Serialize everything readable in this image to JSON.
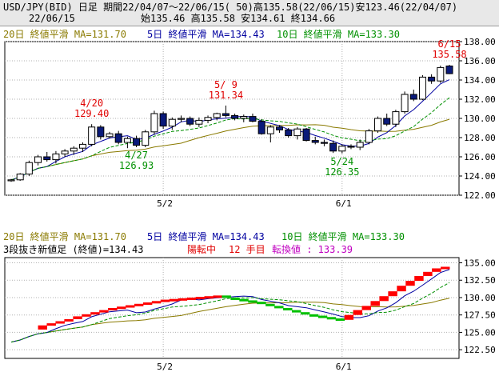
{
  "header": {
    "line1": "USD/JPY(BID) 日足 期間22/04/07～22/06/15( 50)高135.58(22/06/15)安123.46(22/04/07)",
    "line2_date": "22/06/15",
    "line2_ohlc": "始135.46 高135.58 安134.61 終134.66"
  },
  "panel1": {
    "ma_legend": [
      {
        "text": "20日 終値平滑 MA=131.70",
        "color": "#8a7a00"
      },
      {
        "text": "5日 終値平滑 MA=134.43",
        "color": "#0000a0"
      },
      {
        "text": "10日 終値平滑 MA=133.30",
        "color": "#009000"
      }
    ],
    "annotations": [
      {
        "date": "4/20",
        "value": "129.40",
        "color": "#e00000"
      },
      {
        "date": "5/ 9",
        "value": "131.34",
        "color": "#e00000"
      },
      {
        "date": "6/15",
        "value": "135.58",
        "color": "#e00000"
      },
      {
        "date": "4/27",
        "value": "126.93",
        "color": "#009000"
      },
      {
        "date": "5/24",
        "value": "126.35",
        "color": "#009000"
      }
    ]
  },
  "panel2": {
    "ma_legend": [
      {
        "text": "20日 終値平滑 MA=131.70",
        "color": "#8a7a00"
      },
      {
        "text": "5日 終値平滑 MA=134.43",
        "color": "#0000a0"
      },
      {
        "text": "10日 終値平滑 MA=133.30",
        "color": "#009000"
      }
    ],
    "info": [
      {
        "text": "3段抜き新値足 (終値)=134.43",
        "color": "#000000"
      },
      {
        "text": "陽転中",
        "color": "#e00000"
      },
      {
        "text": "12 手目",
        "color": "#e00000"
      },
      {
        "text": "転換値 : 133.39",
        "color": "#c000c0"
      }
    ]
  },
  "chart_data": [
    {
      "type": "candlestick",
      "x_ticks": [
        "5/2",
        "6/1"
      ],
      "ylim": [
        122,
        138
      ],
      "y_ticks": [
        "122.00",
        "124.00",
        "126.00",
        "128.00",
        "130.00",
        "132.00",
        "134.00",
        "136.00",
        "138.00"
      ],
      "up_color": "#ffffff",
      "down_color": "#0a1a7a",
      "candles": [
        [
          123.5,
          123.7,
          123.4,
          123.6
        ],
        [
          123.6,
          124.3,
          123.5,
          124.2
        ],
        [
          124.2,
          125.6,
          124.0,
          125.4
        ],
        [
          125.4,
          126.2,
          125.1,
          126.0
        ],
        [
          126.0,
          126.5,
          125.5,
          125.7
        ],
        [
          125.7,
          126.6,
          125.3,
          126.3
        ],
        [
          126.3,
          126.8,
          126.0,
          126.6
        ],
        [
          126.6,
          127.1,
          126.2,
          126.9
        ],
        [
          126.9,
          127.5,
          126.5,
          127.3
        ],
        [
          127.3,
          129.4,
          127.1,
          129.1
        ],
        [
          129.1,
          129.3,
          127.8,
          128.1
        ],
        [
          128.1,
          128.6,
          127.9,
          128.4
        ],
        [
          128.4,
          128.7,
          127.3,
          127.5
        ],
        [
          127.5,
          128.1,
          126.9,
          127.9
        ],
        [
          127.9,
          128.2,
          127.0,
          127.2
        ],
        [
          127.2,
          128.8,
          127.0,
          128.6
        ],
        [
          128.6,
          130.8,
          128.3,
          130.5
        ],
        [
          130.5,
          130.7,
          128.9,
          129.2
        ],
        [
          129.2,
          130.1,
          128.8,
          129.9
        ],
        [
          129.9,
          130.3,
          129.6,
          130.0
        ],
        [
          130.0,
          130.2,
          129.2,
          129.4
        ],
        [
          129.4,
          130.1,
          129.1,
          129.8
        ],
        [
          129.8,
          130.3,
          129.5,
          130.1
        ],
        [
          130.1,
          130.6,
          129.8,
          130.5
        ],
        [
          130.5,
          131.34,
          130.1,
          130.3
        ],
        [
          130.3,
          130.5,
          129.8,
          130.0
        ],
        [
          130.0,
          130.4,
          129.6,
          130.2
        ],
        [
          130.2,
          130.5,
          129.6,
          129.7
        ],
        [
          129.7,
          129.9,
          128.3,
          128.4
        ],
        [
          128.4,
          129.3,
          127.5,
          129.1
        ],
        [
          129.1,
          129.3,
          128.5,
          128.8
        ],
        [
          128.8,
          129.0,
          128.0,
          128.2
        ],
        [
          128.2,
          129.1,
          127.8,
          128.9
        ],
        [
          128.9,
          129.0,
          127.6,
          127.7
        ],
        [
          127.7,
          128.1,
          127.3,
          127.5
        ],
        [
          127.5,
          127.8,
          127.1,
          127.4
        ],
        [
          127.4,
          127.7,
          126.4,
          126.6
        ],
        [
          126.6,
          127.3,
          126.35,
          127.1
        ],
        [
          127.1,
          127.3,
          126.8,
          127.0
        ],
        [
          127.0,
          127.8,
          126.7,
          127.5
        ],
        [
          127.5,
          128.9,
          127.3,
          128.7
        ],
        [
          128.7,
          130.2,
          128.5,
          130.0
        ],
        [
          130.0,
          130.5,
          129.2,
          129.4
        ],
        [
          129.4,
          130.9,
          129.1,
          130.7
        ],
        [
          130.7,
          132.8,
          130.5,
          132.5
        ],
        [
          132.5,
          133.0,
          131.8,
          132.0
        ],
        [
          132.0,
          134.5,
          131.9,
          134.3
        ],
        [
          134.3,
          134.6,
          133.6,
          133.9
        ],
        [
          133.9,
          135.5,
          133.7,
          135.3
        ],
        [
          135.46,
          135.58,
          134.61,
          134.66
        ]
      ]
    },
    {
      "type": "bar",
      "title": "3段抜き新値足 (終値)",
      "x_ticks": [
        "5/2",
        "6/1"
      ],
      "ylim": [
        121.25,
        135.75
      ],
      "y_ticks": [
        "122.50",
        "125.00",
        "127.50",
        "130.00",
        "132.50",
        "135.00"
      ],
      "brick_colors": {
        "up": "#ff0000",
        "down": "#00c000"
      },
      "bricks": [
        {
          "from": 125.4,
          "to": 126.0,
          "dir": "up"
        },
        {
          "from": 126.0,
          "to": 126.3,
          "dir": "up"
        },
        {
          "from": 126.3,
          "to": 126.6,
          "dir": "up"
        },
        {
          "from": 126.6,
          "to": 126.9,
          "dir": "up"
        },
        {
          "from": 126.9,
          "to": 127.3,
          "dir": "up"
        },
        {
          "from": 127.3,
          "to": 127.6,
          "dir": "up"
        },
        {
          "from": 127.6,
          "to": 127.9,
          "dir": "up"
        },
        {
          "from": 127.9,
          "to": 128.2,
          "dir": "up"
        },
        {
          "from": 128.2,
          "to": 128.5,
          "dir": "up"
        },
        {
          "from": 128.5,
          "to": 128.7,
          "dir": "up"
        },
        {
          "from": 128.7,
          "to": 128.9,
          "dir": "up"
        },
        {
          "from": 128.9,
          "to": 129.1,
          "dir": "up"
        },
        {
          "from": 129.1,
          "to": 129.3,
          "dir": "up"
        },
        {
          "from": 129.3,
          "to": 129.5,
          "dir": "up"
        },
        {
          "from": 129.5,
          "to": 129.7,
          "dir": "up"
        },
        {
          "from": 129.7,
          "to": 129.8,
          "dir": "up"
        },
        {
          "from": 129.8,
          "to": 129.9,
          "dir": "up"
        },
        {
          "from": 129.9,
          "to": 130.0,
          "dir": "up"
        },
        {
          "from": 130.0,
          "to": 130.1,
          "dir": "up"
        },
        {
          "from": 130.1,
          "to": 130.2,
          "dir": "up"
        },
        {
          "from": 130.2,
          "to": 130.3,
          "dir": "up"
        },
        {
          "from": 130.3,
          "to": 130.0,
          "dir": "down"
        },
        {
          "from": 130.0,
          "to": 129.8,
          "dir": "down"
        },
        {
          "from": 129.8,
          "to": 129.6,
          "dir": "down"
        },
        {
          "from": 129.6,
          "to": 129.4,
          "dir": "down"
        },
        {
          "from": 129.4,
          "to": 129.1,
          "dir": "down"
        },
        {
          "from": 129.1,
          "to": 128.8,
          "dir": "down"
        },
        {
          "from": 128.8,
          "to": 128.5,
          "dir": "down"
        },
        {
          "from": 128.5,
          "to": 128.2,
          "dir": "down"
        },
        {
          "from": 128.2,
          "to": 127.9,
          "dir": "down"
        },
        {
          "from": 127.9,
          "to": 127.6,
          "dir": "down"
        },
        {
          "from": 127.6,
          "to": 127.4,
          "dir": "down"
        },
        {
          "from": 127.4,
          "to": 127.2,
          "dir": "down"
        },
        {
          "from": 127.2,
          "to": 127.0,
          "dir": "down"
        },
        {
          "from": 127.0,
          "to": 126.8,
          "dir": "down"
        },
        {
          "from": 126.8,
          "to": 127.5,
          "dir": "up"
        },
        {
          "from": 127.5,
          "to": 128.2,
          "dir": "up"
        },
        {
          "from": 128.2,
          "to": 128.8,
          "dir": "up"
        },
        {
          "from": 128.8,
          "to": 129.5,
          "dir": "up"
        },
        {
          "from": 129.5,
          "to": 130.2,
          "dir": "up"
        },
        {
          "from": 130.2,
          "to": 130.9,
          "dir": "up"
        },
        {
          "from": 130.9,
          "to": 131.7,
          "dir": "up"
        },
        {
          "from": 131.7,
          "to": 132.4,
          "dir": "up"
        },
        {
          "from": 132.4,
          "to": 133.1,
          "dir": "up"
        },
        {
          "from": 133.1,
          "to": 133.7,
          "dir": "up"
        },
        {
          "from": 133.7,
          "to": 134.2,
          "dir": "up"
        },
        {
          "from": 134.2,
          "to": 134.43,
          "dir": "up"
        }
      ]
    }
  ]
}
